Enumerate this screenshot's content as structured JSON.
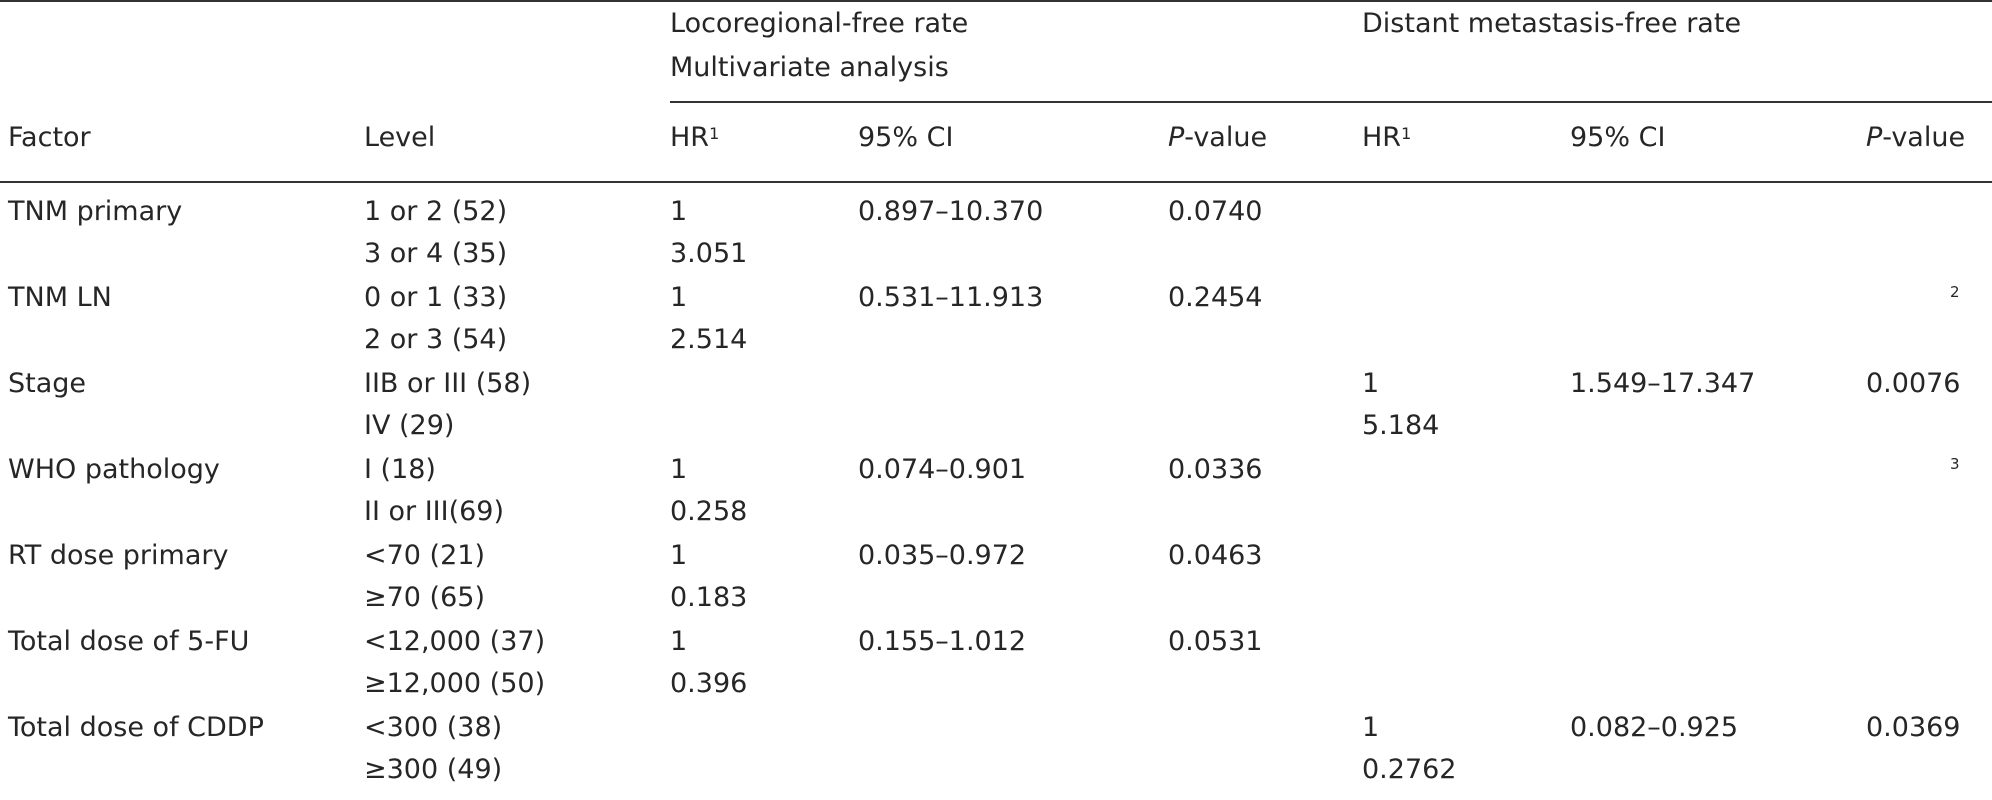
{
  "groups": {
    "lr_title": "Locoregional-free rate",
    "lr_subtitle": "Multivariate analysis",
    "dm_title": "Distant metastasis-free rate"
  },
  "headers": {
    "factor": "Factor",
    "level": "Level",
    "hr": "HR",
    "hr_sup": "1",
    "ci": "95% CI",
    "p_italic": "P",
    "p_rest": "-value"
  },
  "rows": [
    {
      "factor": "TNM primary",
      "level1": "1 or 2 (52)",
      "level2": "3 or 4 (35)",
      "lr_hr1": "1",
      "lr_hr2": "3.051",
      "lr_ci": "0.897–10.370",
      "lr_p": "0.0740",
      "dm_hr1": "",
      "dm_hr2": "",
      "dm_ci": "",
      "dm_p": ""
    },
    {
      "factor": "TNM LN",
      "level1": "0 or 1 (33)",
      "level2": "2 or 3 (54)",
      "lr_hr1": "1",
      "lr_hr2": "2.514",
      "lr_ci": "0.531–11.913",
      "lr_p": "0.2454",
      "dm_hr1": "",
      "dm_hr2": "",
      "dm_ci": "",
      "dm_p": "2"
    },
    {
      "factor": "Stage",
      "level1": "IIB or III (58)",
      "level2": "IV (29)",
      "lr_hr1": "",
      "lr_hr2": "",
      "lr_ci": "",
      "lr_p": "",
      "dm_hr1": "1",
      "dm_hr2": "5.184",
      "dm_ci": "1.549–17.347",
      "dm_p": "0.0076"
    },
    {
      "factor": "WHO pathology",
      "level1": "I (18)",
      "level2": "II or III(69)",
      "lr_hr1": "1",
      "lr_hr2": "0.258",
      "lr_ci": "0.074–0.901",
      "lr_p": "0.0336",
      "dm_hr1": "",
      "dm_hr2": "",
      "dm_ci": "",
      "dm_p": "3"
    },
    {
      "factor": "RT dose primary",
      "level1": "<70 (21)",
      "level2": "≥70 (65)",
      "lr_hr1": "1",
      "lr_hr2": "0.183",
      "lr_ci": "0.035–0.972",
      "lr_p": "0.0463",
      "dm_hr1": "",
      "dm_hr2": "",
      "dm_ci": "",
      "dm_p": ""
    },
    {
      "factor": "Total dose of 5-FU",
      "level1": "<12,000 (37)",
      "level2": "≥12,000 (50)",
      "lr_hr1": "1",
      "lr_hr2": "0.396",
      "lr_ci": "0.155–1.012",
      "lr_p": "0.0531",
      "dm_hr1": "",
      "dm_hr2": "",
      "dm_ci": "",
      "dm_p": ""
    },
    {
      "factor": "Total dose of CDDP",
      "level1": "<300 (38)",
      "level2": "≥300 (49)",
      "lr_hr1": "",
      "lr_hr2": "",
      "lr_ci": "",
      "lr_p": "",
      "dm_hr1": "1",
      "dm_hr2": "0.2762",
      "dm_ci": "0.082–0.925",
      "dm_p": "0.0369"
    }
  ]
}
